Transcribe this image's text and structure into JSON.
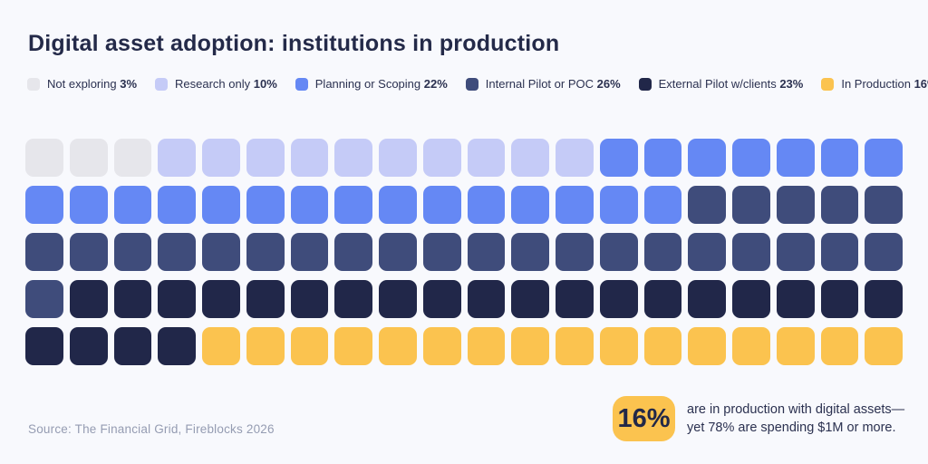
{
  "title": "Digital asset adoption: institutions in production",
  "colors": {
    "background": "#f8f9fd",
    "title_text": "#242a49",
    "legend_text": "#2b3150",
    "source_text": "#959cb2",
    "callout_badge_bg": "#fbc34f",
    "callout_value_text": "#222848"
  },
  "chart_data": {
    "type": "waffle",
    "title": "Digital asset adoption: institutions in production",
    "rows": 5,
    "cols": 20,
    "total_units": 100,
    "unit_value_percent": 1,
    "fill_order": "row-major, left-to-right, top-to-bottom",
    "legend_position": "top",
    "categories": [
      {
        "label": "Not exploring",
        "pct": 3,
        "color": "#e6e6eb"
      },
      {
        "label": "Research only",
        "pct": 10,
        "color": "#c5cbf7"
      },
      {
        "label": "Planning or Scoping",
        "pct": 22,
        "color": "#6588f4"
      },
      {
        "label": "Internal Pilot or POC",
        "pct": 26,
        "color": "#3f4c7b"
      },
      {
        "label": "External Pilot w/clients",
        "pct": 23,
        "color": "#212749"
      },
      {
        "label": "In Production",
        "pct": 16,
        "color": "#fbc34f"
      }
    ]
  },
  "source": "Source: The Financial Grid, Fireblocks 2026",
  "callout": {
    "value": "16%",
    "line1": "are in production with digital assets—",
    "line2": "yet 78% are spending $1M or more."
  }
}
